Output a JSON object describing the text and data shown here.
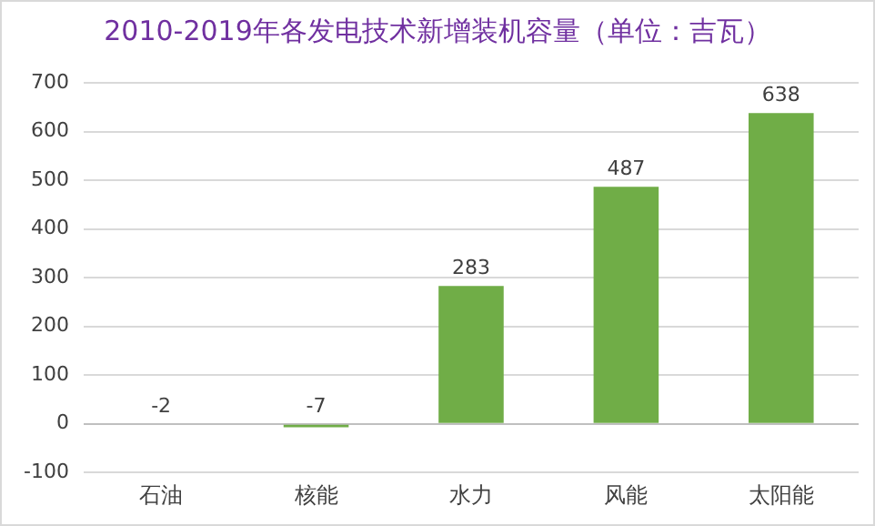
{
  "chart_data": {
    "type": "bar",
    "title": "2010-2019年各发电技术新增装机容量（单位：吉瓦）",
    "categories": [
      "石油",
      "核能",
      "水力",
      "风能",
      "太阳能"
    ],
    "values": [
      -2,
      -7,
      283,
      487,
      638
    ],
    "color": "#70ad47",
    "ylim": [
      -100,
      700
    ],
    "yticks": [
      -100,
      0,
      100,
      200,
      300,
      400,
      500,
      600,
      700
    ],
    "grid": "y",
    "data_labels": true
  }
}
